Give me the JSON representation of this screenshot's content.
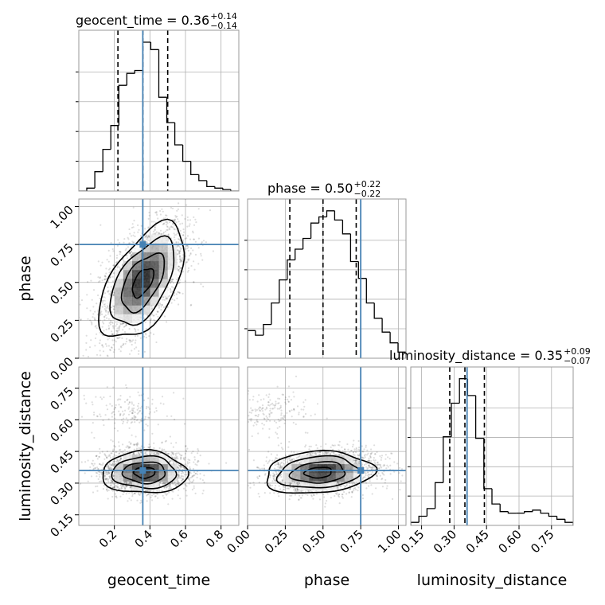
{
  "chart_data": {
    "type": "corner",
    "parameters": [
      "geocent_time",
      "phase",
      "luminosity_distance"
    ],
    "truth_color": "#4682b4",
    "grid": true,
    "titles": [
      {
        "param": "geocent_time",
        "text": "geocent_time = 0.36",
        "plus": "+0.14",
        "minus": "−0.14"
      },
      {
        "param": "phase",
        "text": "phase = 0.50",
        "plus": "+0.22",
        "minus": "−0.22"
      },
      {
        "param": "luminosity_distance",
        "text": "luminosity_distance = 0.35",
        "plus": "+0.09",
        "minus": "−0.07"
      }
    ],
    "axes": {
      "geocent_time": {
        "range": [
          0.0,
          0.9
        ],
        "ticks": [
          0.2,
          0.4,
          0.6,
          0.8
        ],
        "tick_labels": [
          "0.2",
          "0.4",
          "0.6",
          "0.8"
        ],
        "label": "geocent_time"
      },
      "phase": {
        "range": [
          0.0,
          1.05
        ],
        "ticks": [
          0.0,
          0.25,
          0.5,
          0.75,
          1.0
        ],
        "tick_labels": [
          "0.00",
          "0.25",
          "0.50",
          "0.75",
          "1.00"
        ],
        "label": "phase"
      },
      "luminosity_distance": {
        "range": [
          0.1,
          0.85
        ],
        "ticks": [
          0.15,
          0.3,
          0.45,
          0.6,
          0.75
        ],
        "tick_labels": [
          "0.15",
          "0.30",
          "0.45",
          "0.60",
          "0.75"
        ],
        "label": "luminosity_distance"
      }
    },
    "truths": {
      "geocent_time": 0.36,
      "phase": 0.75,
      "luminosity_distance": 0.36
    },
    "quantiles": {
      "geocent_time": [
        0.22,
        0.36,
        0.5
      ],
      "phase": [
        0.28,
        0.5,
        0.72
      ],
      "luminosity_distance": [
        0.28,
        0.35,
        0.44
      ]
    },
    "histograms": {
      "geocent_time": {
        "bin_edges": [
          0.0,
          0.045,
          0.09,
          0.135,
          0.18,
          0.225,
          0.27,
          0.315,
          0.36,
          0.405,
          0.45,
          0.495,
          0.54,
          0.585,
          0.63,
          0.675,
          0.72,
          0.765,
          0.81,
          0.855,
          0.9
        ],
        "counts": [
          0,
          2,
          13,
          28,
          44,
          71,
          79,
          81,
          100,
          95,
          63,
          46,
          31,
          20,
          11,
          7,
          3,
          2,
          1,
          0
        ]
      },
      "phase": {
        "bin_edges": [
          0.0,
          0.0525,
          0.105,
          0.1575,
          0.21,
          0.2625,
          0.315,
          0.3675,
          0.42,
          0.4725,
          0.525,
          0.5775,
          0.63,
          0.6825,
          0.735,
          0.7875,
          0.84,
          0.8925,
          0.945,
          0.9975,
          1.05
        ],
        "counts": [
          18,
          15,
          22,
          36,
          51,
          64,
          71,
          78,
          88,
          92,
          96,
          90,
          81,
          63,
          52,
          36,
          26,
          17,
          10,
          4
        ]
      },
      "luminosity_distance": {
        "bin_edges": [
          0.1,
          0.1375,
          0.175,
          0.2125,
          0.25,
          0.2875,
          0.325,
          0.3625,
          0.4,
          0.4375,
          0.475,
          0.5125,
          0.55,
          0.5875,
          0.625,
          0.6625,
          0.7,
          0.7375,
          0.775,
          0.8125,
          0.85
        ],
        "counts": [
          2,
          6,
          11,
          28,
          58,
          80,
          96,
          85,
          57,
          24,
          14,
          9,
          8,
          8,
          9,
          10,
          8,
          6,
          4,
          2
        ]
      }
    }
  }
}
